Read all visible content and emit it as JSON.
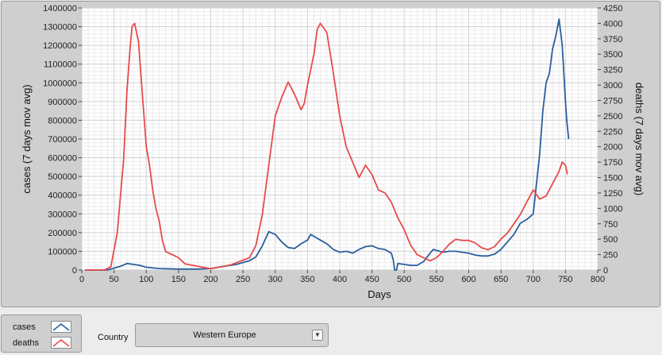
{
  "controls": {
    "legend": [
      {
        "label": "cases",
        "color": "#2a5f9e"
      },
      {
        "label": "deaths",
        "color": "#e84a4a"
      }
    ],
    "country_label": "Country",
    "country_value": "Western Europe",
    "dropdown_icon": "chevron-down-icon"
  },
  "chart_data": {
    "type": "line",
    "xlabel": "Days",
    "ylabel_left": "cases  (7 days mov avg)",
    "ylabel_right": "deaths  (7 days mov avg)",
    "xlim": [
      0,
      800
    ],
    "ylim_left": [
      0,
      1400000
    ],
    "ylim_right": [
      0,
      4250
    ],
    "x_ticks": [
      "0",
      "50",
      "100",
      "150",
      "200",
      "250",
      "300",
      "350",
      "400",
      "450",
      "500",
      "550",
      "600",
      "650",
      "700",
      "750",
      "800"
    ],
    "y_left_ticks": [
      "0",
      "100000",
      "200000",
      "300000",
      "400000",
      "500000",
      "600000",
      "700000",
      "800000",
      "900000",
      "1000000",
      "1100000",
      "1200000",
      "1300000",
      "1400000"
    ],
    "y_right_ticks": [
      "0",
      "250",
      "500",
      "750",
      "1000",
      "1250",
      "1500",
      "1750",
      "2000",
      "2250",
      "2500",
      "2750",
      "3000",
      "3250",
      "3500",
      "3750",
      "4000",
      "4250"
    ],
    "grid": true,
    "series": [
      {
        "name": "cases",
        "axis": "left",
        "color": "#2a5f9e",
        "points": [
          [
            5,
            0
          ],
          [
            40,
            0
          ],
          [
            50,
            10000
          ],
          [
            60,
            20000
          ],
          [
            70,
            35000
          ],
          [
            80,
            30000
          ],
          [
            90,
            25000
          ],
          [
            100,
            15000
          ],
          [
            120,
            8000
          ],
          [
            150,
            5000
          ],
          [
            180,
            5000
          ],
          [
            200,
            8000
          ],
          [
            220,
            20000
          ],
          [
            240,
            30000
          ],
          [
            250,
            40000
          ],
          [
            260,
            50000
          ],
          [
            270,
            70000
          ],
          [
            280,
            130000
          ],
          [
            290,
            205000
          ],
          [
            300,
            190000
          ],
          [
            310,
            150000
          ],
          [
            320,
            120000
          ],
          [
            330,
            115000
          ],
          [
            340,
            140000
          ],
          [
            350,
            160000
          ],
          [
            355,
            190000
          ],
          [
            360,
            180000
          ],
          [
            370,
            160000
          ],
          [
            380,
            140000
          ],
          [
            390,
            110000
          ],
          [
            400,
            95000
          ],
          [
            410,
            100000
          ],
          [
            420,
            90000
          ],
          [
            430,
            110000
          ],
          [
            440,
            125000
          ],
          [
            450,
            130000
          ],
          [
            460,
            115000
          ],
          [
            470,
            110000
          ],
          [
            480,
            90000
          ],
          [
            483,
            55000
          ],
          [
            485,
            0
          ],
          [
            488,
            0
          ],
          [
            490,
            35000
          ],
          [
            500,
            30000
          ],
          [
            510,
            25000
          ],
          [
            520,
            25000
          ],
          [
            530,
            45000
          ],
          [
            540,
            90000
          ],
          [
            545,
            110000
          ],
          [
            550,
            105000
          ],
          [
            560,
            95000
          ],
          [
            570,
            100000
          ],
          [
            580,
            100000
          ],
          [
            590,
            95000
          ],
          [
            600,
            90000
          ],
          [
            610,
            80000
          ],
          [
            620,
            75000
          ],
          [
            630,
            75000
          ],
          [
            640,
            85000
          ],
          [
            650,
            110000
          ],
          [
            660,
            150000
          ],
          [
            670,
            190000
          ],
          [
            680,
            250000
          ],
          [
            690,
            270000
          ],
          [
            700,
            300000
          ],
          [
            710,
            620000
          ],
          [
            715,
            850000
          ],
          [
            720,
            1000000
          ],
          [
            725,
            1050000
          ],
          [
            730,
            1180000
          ],
          [
            735,
            1250000
          ],
          [
            740,
            1340000
          ],
          [
            745,
            1200000
          ],
          [
            750,
            900000
          ],
          [
            752,
            800000
          ],
          [
            755,
            700000
          ]
        ]
      },
      {
        "name": "deaths",
        "axis": "right",
        "color": "#e84a4a",
        "points": [
          [
            5,
            0
          ],
          [
            35,
            0
          ],
          [
            45,
            50
          ],
          [
            55,
            600
          ],
          [
            65,
            1800
          ],
          [
            70,
            2900
          ],
          [
            75,
            3600
          ],
          [
            78,
            3950
          ],
          [
            82,
            4000
          ],
          [
            88,
            3700
          ],
          [
            95,
            2700
          ],
          [
            100,
            2000
          ],
          [
            105,
            1700
          ],
          [
            110,
            1300
          ],
          [
            115,
            1000
          ],
          [
            120,
            800
          ],
          [
            125,
            480
          ],
          [
            130,
            300
          ],
          [
            140,
            250
          ],
          [
            150,
            200
          ],
          [
            160,
            100
          ],
          [
            180,
            60
          ],
          [
            200,
            20
          ],
          [
            220,
            60
          ],
          [
            230,
            80
          ],
          [
            240,
            120
          ],
          [
            250,
            160
          ],
          [
            260,
            200
          ],
          [
            270,
            400
          ],
          [
            280,
            900
          ],
          [
            290,
            1700
          ],
          [
            300,
            2500
          ],
          [
            310,
            2800
          ],
          [
            320,
            3050
          ],
          [
            330,
            2850
          ],
          [
            340,
            2600
          ],
          [
            345,
            2700
          ],
          [
            350,
            3000
          ],
          [
            360,
            3500
          ],
          [
            365,
            3900
          ],
          [
            370,
            4000
          ],
          [
            380,
            3850
          ],
          [
            390,
            3200
          ],
          [
            400,
            2500
          ],
          [
            410,
            2000
          ],
          [
            420,
            1750
          ],
          [
            430,
            1500
          ],
          [
            440,
            1700
          ],
          [
            450,
            1550
          ],
          [
            460,
            1300
          ],
          [
            470,
            1250
          ],
          [
            480,
            1100
          ],
          [
            490,
            850
          ],
          [
            500,
            650
          ],
          [
            510,
            400
          ],
          [
            520,
            250
          ],
          [
            530,
            200
          ],
          [
            540,
            150
          ],
          [
            550,
            200
          ],
          [
            560,
            300
          ],
          [
            570,
            420
          ],
          [
            580,
            500
          ],
          [
            590,
            480
          ],
          [
            600,
            480
          ],
          [
            610,
            440
          ],
          [
            620,
            360
          ],
          [
            630,
            330
          ],
          [
            640,
            380
          ],
          [
            650,
            500
          ],
          [
            660,
            600
          ],
          [
            670,
            750
          ],
          [
            680,
            900
          ],
          [
            690,
            1100
          ],
          [
            700,
            1300
          ],
          [
            710,
            1150
          ],
          [
            720,
            1200
          ],
          [
            730,
            1400
          ],
          [
            740,
            1600
          ],
          [
            745,
            1750
          ],
          [
            750,
            1700
          ],
          [
            753,
            1550
          ]
        ]
      }
    ]
  }
}
